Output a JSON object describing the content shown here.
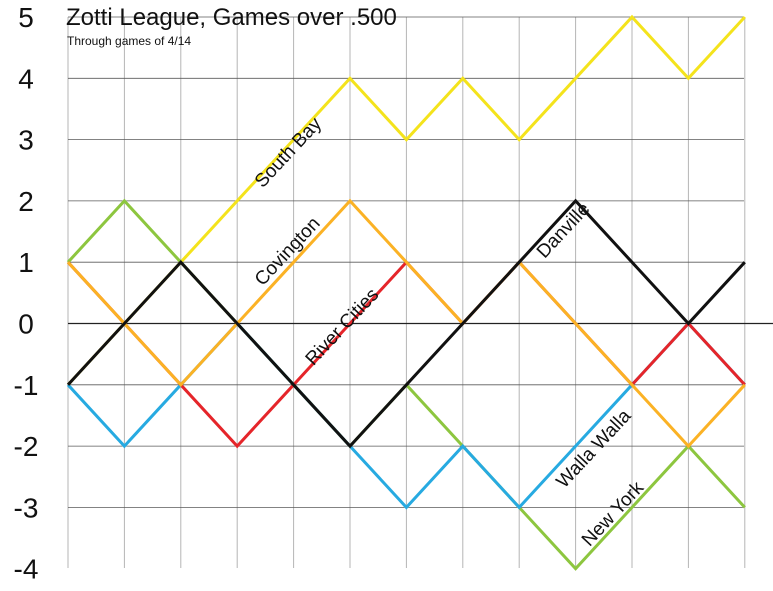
{
  "chart_data": {
    "type": "line",
    "title": "Zotti League, Games over .500",
    "subtitle": "Through games of 4/14",
    "xlabel": "",
    "ylabel": "",
    "ylim": [
      -4,
      5
    ],
    "yticks": [
      5,
      4,
      3,
      2,
      1,
      0,
      -1,
      -2,
      -3,
      -4
    ],
    "x": [
      1,
      2,
      3,
      4,
      5,
      6,
      7,
      8,
      9,
      10,
      11,
      12,
      13
    ],
    "grid": true,
    "series": [
      {
        "name": "South Bay",
        "color": "#f4e31c",
        "label": "South Bay",
        "values": [
          -1,
          0,
          1,
          2,
          3,
          4,
          3,
          4,
          3,
          4,
          5,
          4,
          5
        ]
      },
      {
        "name": "New York",
        "color": "#8dc63f",
        "label": "New York",
        "values": [
          1,
          2,
          1,
          0,
          -1,
          -2,
          -1,
          -2,
          -3,
          -4,
          -3,
          -2,
          -3
        ]
      },
      {
        "name": "Walla Walla",
        "color": "#27aae1",
        "label": "Walla Walla",
        "values": [
          -1,
          -2,
          -1,
          0,
          -1,
          -2,
          -3,
          -2,
          -3,
          -2,
          -1,
          0,
          -1
        ]
      },
      {
        "name": "River Cities",
        "color": "#e5252a",
        "label": "River Cities",
        "values": [
          1,
          0,
          -1,
          -2,
          -1,
          0,
          1,
          0,
          1,
          0,
          -1,
          0,
          -1
        ]
      },
      {
        "name": "Covington",
        "color": "#fbb225",
        "label": "Covington",
        "values": [
          1,
          0,
          -1,
          0,
          1,
          2,
          1,
          0,
          1,
          0,
          -1,
          -2,
          -1
        ]
      },
      {
        "name": "Danville",
        "color": "#111111",
        "label": "Danville",
        "values": [
          -1,
          0,
          1,
          0,
          -1,
          -2,
          -1,
          0,
          1,
          2,
          1,
          0,
          1
        ]
      }
    ]
  }
}
